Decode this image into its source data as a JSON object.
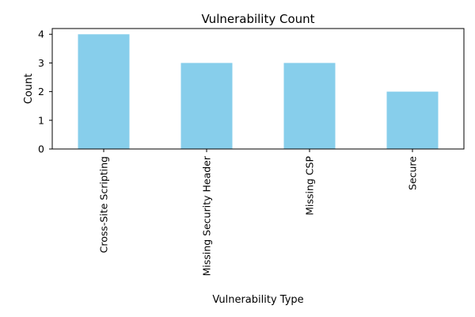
{
  "chart_data": {
    "type": "bar",
    "title": "Vulnerability Count",
    "xlabel": "Vulnerability Type",
    "ylabel": "Count",
    "categories": [
      "Cross-Site Scripting",
      "Missing Security Header",
      "Missing CSP",
      "Secure"
    ],
    "values": [
      4,
      3,
      3,
      2
    ],
    "ylim": [
      0,
      4.2
    ],
    "yticks": [
      "0",
      "1",
      "2",
      "3",
      "4"
    ],
    "bar_color": "#87ceeb",
    "grid": false,
    "legend": "none"
  }
}
